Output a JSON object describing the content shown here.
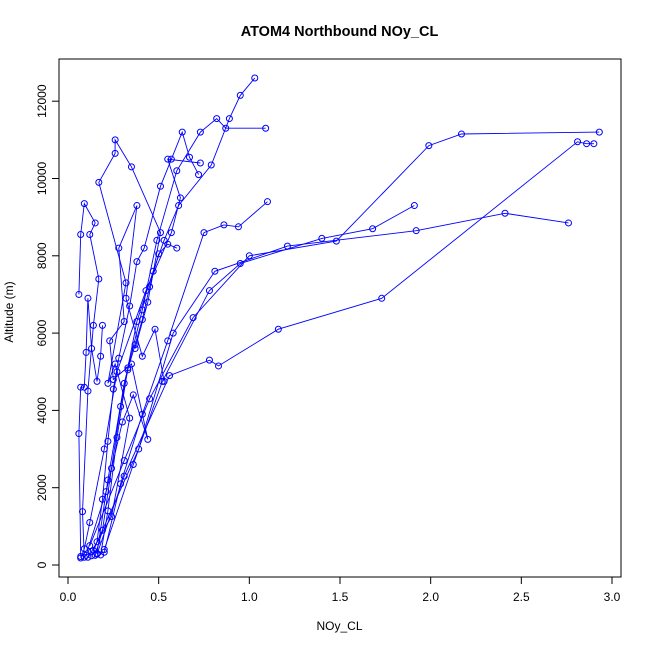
{
  "chart_data": {
    "type": "scatter",
    "title": "ATOM4 Northbound NOy_CL",
    "xlabel": "NOy_CL",
    "ylabel": "Altitude (m)",
    "xlim": [
      0.0,
      3.0
    ],
    "ylim": [
      0,
      12600
    ],
    "x_ticks": [
      0.0,
      0.5,
      1.0,
      1.5,
      2.0,
      2.5,
      3.0
    ],
    "x_tick_labels": [
      "0.0",
      "0.5",
      "1.0",
      "1.5",
      "2.0",
      "2.5",
      "3.0"
    ],
    "y_ticks": [
      0,
      2000,
      4000,
      6000,
      8000,
      10000,
      12000
    ],
    "y_tick_labels": [
      "0",
      "2000",
      "4000",
      "6000",
      "8000",
      "10000",
      "12000"
    ],
    "grid": false,
    "legend": "none",
    "series_color": "#0000ff",
    "marker": "open-circle",
    "line": true,
    "series": [
      {
        "x": [
          0.11,
          0.13,
          0.24,
          0.34,
          0.26,
          0.22,
          0.32,
          0.17,
          0.26,
          0.26,
          0.35,
          0.51,
          0.44,
          0.37
        ],
        "y": [
          200,
          350,
          1250,
          3800,
          5200,
          4700,
          7300,
          9900,
          10650,
          11000,
          10300,
          8600,
          6800,
          5600
        ]
      },
      {
        "x": [
          0.07,
          0.09,
          0.12,
          0.2,
          0.27,
          0.43,
          0.57,
          0.62,
          0.55,
          0.73
        ],
        "y": [
          180,
          420,
          1100,
          3000,
          5000,
          7100,
          8600,
          9500,
          10500,
          10400
        ]
      },
      {
        "x": [
          0.09,
          0.08,
          0.11,
          0.14,
          0.17,
          0.12,
          0.15,
          0.09,
          0.07,
          0.06
        ],
        "y": [
          200,
          1380,
          4500,
          6200,
          7400,
          8550,
          8850,
          9350,
          8550,
          7000
        ]
      },
      {
        "x": [
          0.07,
          0.06,
          0.07,
          0.09,
          0.1,
          0.11,
          0.13,
          0.16,
          0.18,
          0.19
        ],
        "y": [
          220,
          3400,
          4600,
          4600,
          5500,
          6900,
          5600,
          4750,
          5400,
          6200
        ]
      },
      {
        "x": [
          0.13,
          0.16,
          0.19,
          0.22,
          0.25,
          0.28,
          0.34,
          0.38,
          0.42,
          0.51,
          0.57,
          0.63,
          0.67,
          0.72
        ],
        "y": [
          240,
          600,
          1700,
          3200,
          4550,
          5350,
          6700,
          7850,
          8200,
          9800,
          10500,
          11200,
          10550,
          10100
        ]
      },
      {
        "x": [
          0.18,
          0.22,
          0.27,
          0.33,
          0.38,
          0.47,
          0.53,
          0.61,
          0.79,
          0.89,
          0.95,
          1.03
        ],
        "y": [
          260,
          1400,
          3300,
          5100,
          6300,
          7600,
          8400,
          9300,
          10350,
          11550,
          12150,
          12600
        ]
      },
      {
        "x": [
          0.16,
          0.22,
          0.31,
          0.41,
          0.49,
          0.6,
          0.73,
          0.82,
          0.87,
          1.09
        ],
        "y": [
          300,
          2200,
          4700,
          6600,
          8400,
          10200,
          11200,
          11550,
          11300,
          11300
        ]
      },
      {
        "x": [
          0.2,
          0.29,
          0.41,
          0.55,
          0.75,
          0.86,
          0.94,
          1.1
        ],
        "y": [
          330,
          2100,
          3900,
          5800,
          8600,
          8800,
          8750,
          9400
        ]
      },
      {
        "x": [
          0.2,
          0.36,
          0.52,
          0.78,
          0.95,
          1.4,
          1.68,
          1.91
        ],
        "y": [
          400,
          2600,
          4750,
          7100,
          7800,
          8450,
          8700,
          9300
        ]
      },
      {
        "x": [
          0.12,
          0.31,
          0.45,
          0.69,
          1.0,
          1.48,
          1.99,
          2.17,
          2.93
        ],
        "y": [
          500,
          2700,
          4300,
          6400,
          8000,
          8380,
          10850,
          11150,
          11200
        ]
      },
      {
        "x": [
          0.14,
          0.39,
          0.58,
          0.81,
          1.21,
          1.92,
          2.41,
          2.76
        ],
        "y": [
          380,
          3000,
          6000,
          7600,
          8250,
          8650,
          9100,
          8850
        ]
      },
      {
        "x": [
          0.16,
          0.31,
          0.56,
          0.78,
          0.83,
          1.16,
          1.73,
          2.81,
          2.86,
          2.9
        ],
        "y": [
          280,
          2300,
          4900,
          5300,
          5150,
          6100,
          6900,
          10950,
          10900,
          10900
        ]
      },
      {
        "x": [
          0.1,
          0.21,
          0.3,
          0.36,
          0.44,
          0.35,
          0.25,
          0.23,
          0.31,
          0.28,
          0.38,
          0.32,
          0.41,
          0.48,
          0.53
        ],
        "y": [
          250,
          1900,
          3700,
          4400,
          3250,
          5200,
          4800,
          5800,
          6300,
          8200,
          9300,
          6900,
          5400,
          6100,
          4750
        ]
      },
      {
        "x": [
          0.15,
          0.19,
          0.24,
          0.29,
          0.33,
          0.37,
          0.41,
          0.45,
          0.5,
          0.55,
          0.6
        ],
        "y": [
          250,
          900,
          2500,
          4100,
          5050,
          5700,
          6350,
          7200,
          8050,
          8300,
          8200
        ]
      }
    ]
  }
}
